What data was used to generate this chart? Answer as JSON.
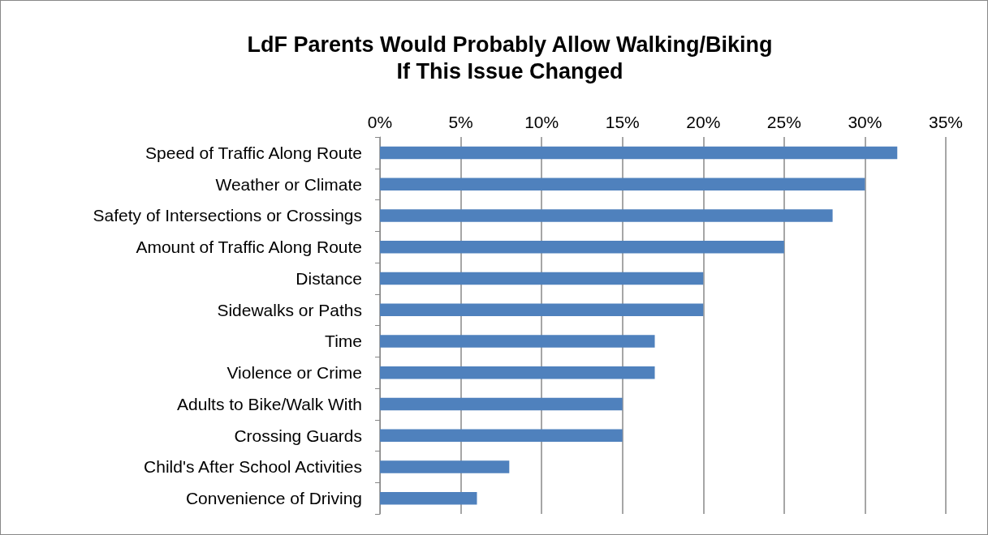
{
  "chart_data": {
    "type": "bar",
    "orientation": "horizontal",
    "title": "LdF Parents Would Probably Allow Walking/Biking\nIf This Issue Changed",
    "categories": [
      "Speed of Traffic Along Route",
      "Weather or Climate",
      "Safety of Intersections or Crossings",
      "Amount of Traffic Along Route",
      "Distance",
      "Sidewalks or Paths",
      "Time",
      "Violence or Crime",
      "Adults to Bike/Walk With",
      "Crossing Guards",
      "Child's After School Activities",
      "Convenience of Driving"
    ],
    "values": [
      32,
      30,
      28,
      25,
      20,
      20,
      17,
      17,
      15,
      15,
      8,
      6
    ],
    "color": "#4f81bd",
    "xlim": [
      0,
      35
    ],
    "xticks": [
      {
        "value": 0,
        "label": "0%"
      },
      {
        "value": 5,
        "label": "5%"
      },
      {
        "value": 10,
        "label": "10%"
      },
      {
        "value": 15,
        "label": "15%"
      },
      {
        "value": 20,
        "label": "20%"
      },
      {
        "value": 25,
        "label": "25%"
      },
      {
        "value": 30,
        "label": "30%"
      },
      {
        "value": 35,
        "label": "35%"
      }
    ],
    "grid": "x"
  }
}
